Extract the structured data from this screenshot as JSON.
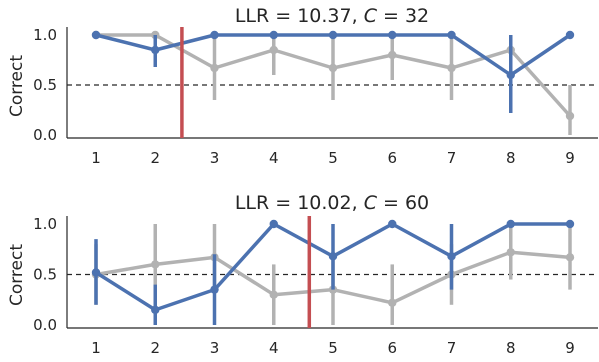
{
  "chart_data": [
    {
      "type": "line",
      "title": "LLR = 10.37,  C = 32",
      "title_parts": [
        "LLR = 10.37,  ",
        "C",
        " = 32"
      ],
      "ylabel": "Correct",
      "xlabel": "",
      "x": [
        1,
        2,
        3,
        4,
        5,
        6,
        7,
        8,
        9
      ],
      "xticklabels": [
        "1",
        "2",
        "3",
        "4",
        "5",
        "6",
        "7",
        "8",
        "9"
      ],
      "yticks": [
        0.0,
        0.5,
        1.0
      ],
      "yticklabels": [
        "0.0",
        "0.5",
        "1.0"
      ],
      "ylim": [
        0.0,
        1.05
      ],
      "xlim": [
        0.6,
        9.4
      ],
      "reference_line_y": 0.5,
      "change_point_x": 2.45,
      "series": [
        {
          "color": "#b2b2b2",
          "values": [
            1.0,
            1.0,
            0.67,
            0.85,
            0.67,
            0.8,
            0.67,
            0.85,
            0.19
          ],
          "err_low": [
            1.0,
            1.0,
            0.35,
            0.6,
            0.35,
            0.55,
            0.35,
            0.6,
            0.0
          ],
          "err_high": [
            1.0,
            1.0,
            1.0,
            1.0,
            1.0,
            1.0,
            1.0,
            1.0,
            0.5
          ]
        },
        {
          "color": "#4c72b0",
          "values": [
            1.0,
            0.85,
            1.0,
            1.0,
            1.0,
            1.0,
            1.0,
            0.6,
            1.0
          ],
          "err_low": [
            1.0,
            0.68,
            1.0,
            1.0,
            1.0,
            1.0,
            1.0,
            0.22,
            1.0
          ],
          "err_high": [
            1.0,
            1.0,
            1.0,
            1.0,
            1.0,
            1.0,
            1.0,
            1.0,
            1.0
          ]
        }
      ],
      "colors": {
        "marker": "#c44e52",
        "reference": "#262626"
      }
    },
    {
      "type": "line",
      "title": "LLR = 10.02,  C = 60",
      "title_parts": [
        "LLR = 10.02,  ",
        "C",
        " = 60"
      ],
      "ylabel": "Correct",
      "xlabel": "",
      "x": [
        1,
        2,
        3,
        4,
        5,
        6,
        7,
        8,
        9
      ],
      "xticklabels": [
        "1",
        "2",
        "3",
        "4",
        "5",
        "6",
        "7",
        "8",
        "9"
      ],
      "yticks": [
        0.0,
        0.5,
        1.0
      ],
      "yticklabels": [
        "0.0",
        "0.5",
        "1.0"
      ],
      "ylim": [
        -0.05,
        1.05
      ],
      "xlim": [
        0.6,
        9.4
      ],
      "reference_line_y": 0.5,
      "change_point_x": 4.6,
      "series": [
        {
          "color": "#b2b2b2",
          "values": [
            0.5,
            0.6,
            0.67,
            0.3,
            0.35,
            0.22,
            0.5,
            0.72,
            0.67
          ],
          "err_low": [
            0.2,
            0.2,
            0.35,
            0.0,
            0.0,
            0.0,
            0.2,
            0.45,
            0.35
          ],
          "err_high": [
            0.8,
            1.0,
            1.0,
            0.6,
            0.7,
            0.6,
            0.8,
            1.0,
            1.0
          ]
        },
        {
          "color": "#4c72b0",
          "values": [
            0.52,
            0.15,
            0.35,
            1.0,
            0.68,
            1.0,
            0.68,
            1.0,
            1.0
          ],
          "err_low": [
            0.2,
            0.0,
            0.0,
            1.0,
            0.35,
            1.0,
            0.35,
            1.0,
            1.0
          ],
          "err_high": [
            0.85,
            0.4,
            0.7,
            1.0,
            1.0,
            1.0,
            1.0,
            1.0,
            1.0
          ]
        }
      ],
      "colors": {
        "marker": "#c44e52",
        "reference": "#262626"
      }
    }
  ]
}
